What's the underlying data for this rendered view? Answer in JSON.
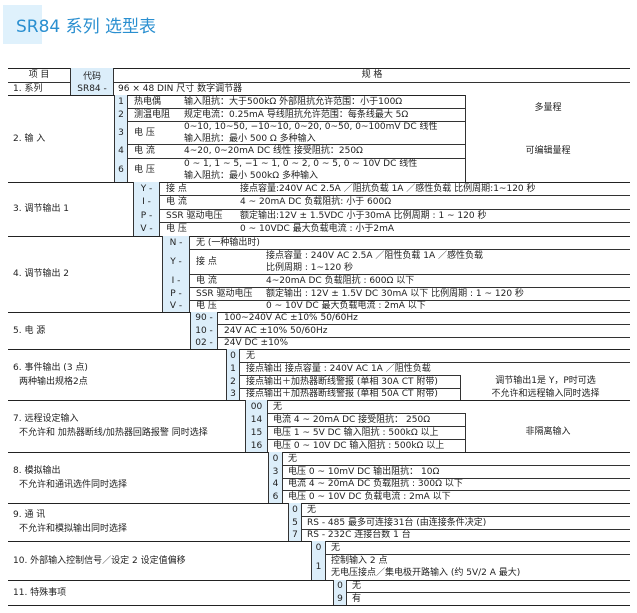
{
  "title": "SR84 系列  选型表",
  "header": {
    "item": "项  目",
    "code": "代码",
    "spec": "规      格"
  },
  "series": {
    "label": "1. 系列",
    "code": "SR84 -",
    "spec": "96 × 48   DIN 尺寸  数字调节器"
  },
  "sections": [
    {
      "label": "2. 输  入",
      "note": "",
      "options": [
        {
          "code": "1",
          "name": "热电偶",
          "spec": "输入阻抗：大于500kΩ    外部阻抗允许范围：小于100Ω"
        },
        {
          "code": "2",
          "name": "测温电阻",
          "spec": "规定电流：0.25mA   导线阻抗允许范围：每条线最大 5Ω"
        },
        {
          "code": "3",
          "name": "电  压",
          "spec": "0~10, 10~50, −10~10, 0~20, 0~50, 0~100mV DC   线性\n输入阻抗：最小 500  Ω  多种输入"
        },
        {
          "code": "4",
          "name": "电  流",
          "spec": "4~20,  0~20mA DC   线性  接受阻抗：250Ω"
        },
        {
          "code": "6",
          "name": "电  压",
          "spec": "0 ~ 1,  1 ~ 5,  −1 ~ 1,  0 ~ 2,  0 ~ 5,  0 ~ 10V DC   线性\n输入阻抗：最小 500kΩ  多种输入"
        }
      ],
      "remarks": [
        "多量程",
        "可编辑量程"
      ]
    },
    {
      "label": "3. 调节输出 1",
      "note": "",
      "options": [
        {
          "code": "Y -",
          "name": "接  点",
          "spec": "接点容量:240V AC   2.5A ／阻抗负载   1A ／感性负载  比例周期:1~120 秒"
        },
        {
          "code": "I -",
          "name": "电  流",
          "spec": "4 ~ 20mA DC   负载阻抗: 小于 600Ω"
        },
        {
          "code": "P -",
          "name": "SSR 驱动电压",
          "spec": "额定输出:12V   ± 1.5VDC   小于30mA    比例周期 : 1 ~ 120 秒"
        },
        {
          "code": "V -",
          "name": "电  压",
          "spec": "0 ~ 10VDC   最大负载电流 : 小于2mA"
        }
      ],
      "remarks": []
    },
    {
      "label": "4. 调节输出 2",
      "note": "",
      "options": [
        {
          "code": "N -",
          "name": "无   (一种输出时)",
          "spec": ""
        },
        {
          "code": "Y -",
          "name": "接  点",
          "spec": "接点容量 : 240V AC   2.5A ／阻性负载   1A ／感性负载\n比例周期 : 1~120 秒"
        },
        {
          "code": "I -",
          "name": "电  流",
          "spec": "4~20mA DC   负载阻抗 : 600Ω 以下"
        },
        {
          "code": "P -",
          "name": "SSR 驱动电压",
          "spec": "额定输出 : 12V   ± 1.5V DC   30mA 以下   比例周期 : 1 ~ 120 秒"
        },
        {
          "code": "V -",
          "name": "电  压",
          "spec": "0 ~ 10V DC    最大负载电流 : 2mA 以下"
        }
      ],
      "remarks": []
    },
    {
      "label": "5. 电  源",
      "note": "",
      "options": [
        {
          "code": "90 -",
          "name": "",
          "spec": "100~240V AC   ±10%   50/60Hz"
        },
        {
          "code": "10 -",
          "name": "",
          "spec": "        24V AC   ±10%   50/60Hz"
        },
        {
          "code": "02 -",
          "name": "",
          "spec": "        24V DC   ±10%"
        }
      ],
      "remarks": []
    },
    {
      "label": "6. 事件输出 (3 点)",
      "note": "两种输出规格2点",
      "options": [
        {
          "code": "0",
          "name": "",
          "spec": "无"
        },
        {
          "code": "1",
          "name": "",
          "spec": "接点输出   接点容量 : 240V AC   1A ／阻性负载"
        },
        {
          "code": "2",
          "name": "",
          "spec": "接点输出＋加热器断线警报 (单相 30A CT 附带)"
        },
        {
          "code": "3",
          "name": "",
          "spec": "接点输出＋加热器断线警报 (单相 50A CT 附带)"
        }
      ],
      "remarks": [
        "调节输出1是 Y，P时可选\n不允许和远程输入同时选择"
      ]
    },
    {
      "label": "7. 远程设定输入",
      "note": "不允许和 加热器断线/加热器回路报警 同时选择",
      "options": [
        {
          "code": "00",
          "name": "",
          "spec": "无"
        },
        {
          "code": "14",
          "name": "",
          "spec": "电流 4 ~ 20mA DC   接受阻抗：  250Ω"
        },
        {
          "code": "15",
          "name": "",
          "spec": "电压 1 ~   5V   DC   输入阻抗 : 500kΩ 以上"
        },
        {
          "code": "16",
          "name": "",
          "spec": "电压 0 ~ 10V   DC   输入阻抗 : 500kΩ 以上"
        }
      ],
      "remarks": [
        "非隔离输入"
      ]
    },
    {
      "label": "8. 模拟输出",
      "note": "不允许和通讯选件同时选择",
      "options": [
        {
          "code": "0",
          "name": "",
          "spec": "无"
        },
        {
          "code": "3",
          "name": "",
          "spec": "电压 0 ~ 10mV DC    输出阻抗：  10Ω"
        },
        {
          "code": "4",
          "name": "",
          "spec": "电流 4 ~ 20mA DC    负载阻抗 : 300Ω 以下"
        },
        {
          "code": "6",
          "name": "",
          "spec": "电压 0 ~ 10V   DC    负载电流 : 2mA 以下"
        }
      ],
      "remarks": []
    },
    {
      "label": "9. 通  讯",
      "note": "不允许和模拟输出同时选择",
      "options": [
        {
          "code": "0",
          "name": "",
          "spec": "无"
        },
        {
          "code": "5",
          "name": "",
          "spec": "RS - 485     最多可连接31台 (由连接条件决定)"
        },
        {
          "code": "7",
          "name": "",
          "spec": "RS - 232C    连接台数  1 台"
        }
      ],
      "remarks": []
    },
    {
      "label": "10. 外部输入控制信号／设定 2 设定值偏移",
      "note": "",
      "options": [
        {
          "code": "0",
          "name": "",
          "spec": "无"
        },
        {
          "code": "1",
          "name": "",
          "spec": "控制输入 2 点\n无电压接点／集电极开路输入 (约 5V/2   A  最大)"
        }
      ],
      "remarks": []
    },
    {
      "label": "11. 特殊事项",
      "note": "",
      "options": [
        {
          "code": "0",
          "name": "",
          "spec": "无"
        },
        {
          "code": "9",
          "name": "",
          "spec": "有"
        }
      ],
      "remarks": []
    }
  ],
  "colors": {
    "title": "#2a8fd0",
    "code_bg": "#dceefa"
  }
}
